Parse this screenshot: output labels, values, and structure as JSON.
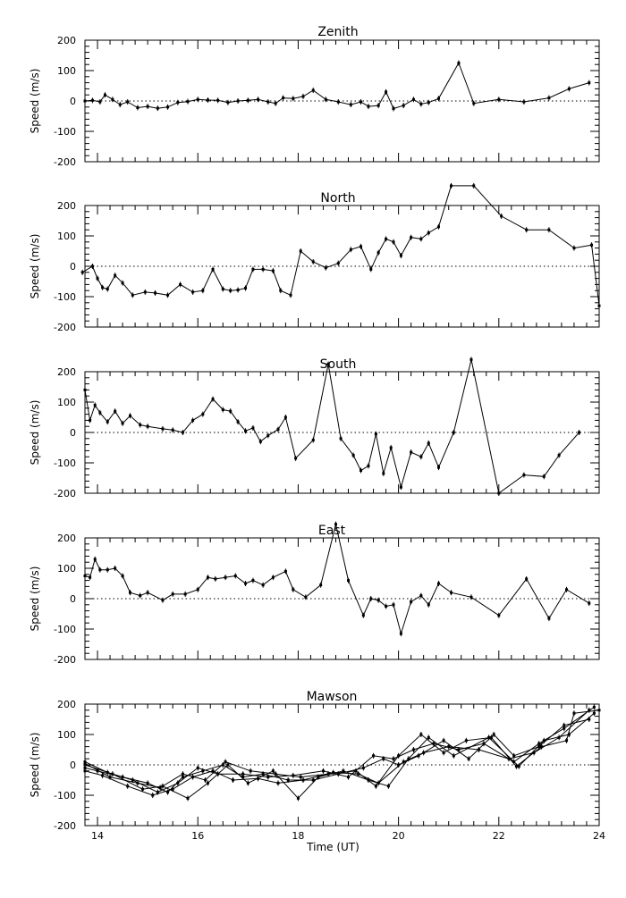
{
  "chart_data": [
    {
      "type": "line",
      "title": "Zenith",
      "ylabel": "Speed (m/s)",
      "xlabel": "",
      "xlim": [
        13.75,
        24
      ],
      "ylim": [
        -200,
        200
      ],
      "yticks": [
        200,
        100,
        0,
        -100,
        -200
      ],
      "xticks": [
        14,
        16,
        18,
        20,
        22,
        24
      ],
      "grid": false,
      "series": [
        {
          "x": [
            13.75,
            13.9,
            14.05,
            14.15,
            14.3,
            14.45,
            14.6,
            14.8,
            15.0,
            15.2,
            15.4,
            15.6,
            15.8,
            16.0,
            16.2,
            16.4,
            16.6,
            16.8,
            17.0,
            17.2,
            17.4,
            17.55,
            17.7,
            17.9,
            18.1,
            18.3,
            18.55,
            18.8,
            19.05,
            19.25,
            19.4,
            19.6,
            19.75,
            19.9,
            20.1,
            20.3,
            20.45,
            20.6,
            20.8,
            21.2,
            21.5,
            22.0,
            22.5,
            23.0,
            23.4,
            23.8
          ],
          "y": [
            0,
            2,
            -3,
            20,
            5,
            -12,
            -3,
            -22,
            -18,
            -24,
            -20,
            -5,
            -2,
            5,
            3,
            2,
            -5,
            0,
            2,
            5,
            -3,
            -8,
            10,
            8,
            15,
            35,
            5,
            -3,
            -12,
            -3,
            -18,
            -15,
            30,
            -25,
            -15,
            5,
            -10,
            -5,
            8,
            125,
            -8,
            5,
            -3,
            10,
            40,
            60
          ]
        }
      ]
    },
    {
      "type": "line",
      "title": "North",
      "ylabel": "Speed (m/s)",
      "xlabel": "",
      "xlim": [
        13.75,
        24
      ],
      "ylim": [
        -200,
        200
      ],
      "yticks": [
        200,
        100,
        0,
        -100,
        -200
      ],
      "xticks": [
        14,
        16,
        18,
        20,
        22,
        24
      ],
      "grid": false,
      "series": [
        {
          "x": [
            13.7,
            13.9,
            14.0,
            14.1,
            14.2,
            14.35,
            14.5,
            14.7,
            14.95,
            15.15,
            15.4,
            15.65,
            15.9,
            16.1,
            16.3,
            16.5,
            16.65,
            16.8,
            16.95,
            17.1,
            17.3,
            17.5,
            17.65,
            17.85,
            18.05,
            18.3,
            18.55,
            18.8,
            19.05,
            19.25,
            19.45,
            19.6,
            19.75,
            19.9,
            20.05,
            20.25,
            20.45,
            20.6,
            20.8,
            21.05,
            21.5,
            22.05,
            22.55,
            23.0,
            23.5,
            23.85,
            24.0
          ],
          "y": [
            -20,
            0,
            -40,
            -70,
            -75,
            -30,
            -55,
            -95,
            -85,
            -88,
            -95,
            -60,
            -85,
            -80,
            -10,
            -75,
            -80,
            -78,
            -72,
            -10,
            -10,
            -15,
            -80,
            -95,
            50,
            15,
            -5,
            10,
            55,
            65,
            -10,
            45,
            90,
            80,
            35,
            95,
            90,
            110,
            130,
            265,
            265,
            165,
            120,
            120,
            60,
            70,
            -130
          ]
        }
      ]
    },
    {
      "type": "line",
      "title": "South",
      "ylabel": "Speed (m/s)",
      "xlabel": "",
      "xlim": [
        13.75,
        24
      ],
      "ylim": [
        -200,
        200
      ],
      "yticks": [
        200,
        100,
        0,
        -100,
        -200
      ],
      "xticks": [
        14,
        16,
        18,
        20,
        22,
        24
      ],
      "grid": false,
      "series": [
        {
          "x": [
            13.75,
            13.85,
            13.95,
            14.05,
            14.2,
            14.35,
            14.5,
            14.65,
            14.85,
            15.0,
            15.3,
            15.5,
            15.7,
            15.9,
            16.1,
            16.3,
            16.5,
            16.65,
            16.8,
            16.95,
            17.1,
            17.25,
            17.4,
            17.6,
            17.75,
            17.95,
            18.3,
            18.6,
            18.85,
            19.1,
            19.25,
            19.4,
            19.55,
            19.7,
            19.85,
            20.05,
            20.25,
            20.45,
            20.6,
            20.8,
            21.1,
            21.45,
            22.0,
            22.5,
            22.9,
            23.2,
            23.6
          ],
          "y": [
            140,
            40,
            90,
            65,
            35,
            70,
            30,
            55,
            25,
            20,
            12,
            8,
            0,
            40,
            60,
            110,
            75,
            70,
            35,
            5,
            15,
            -30,
            -10,
            10,
            50,
            -85,
            -25,
            225,
            -20,
            -75,
            -125,
            -110,
            -5,
            -135,
            -50,
            -180,
            -65,
            -80,
            -35,
            -115,
            0,
            240,
            -200,
            -140,
            -145,
            -75,
            0
          ]
        }
      ]
    },
    {
      "type": "line",
      "title": "East",
      "ylabel": "Speed (m/s)",
      "xlabel": "",
      "xlim": [
        13.75,
        24
      ],
      "ylim": [
        -200,
        200
      ],
      "yticks": [
        200,
        100,
        0,
        -100,
        -200
      ],
      "xticks": [
        14,
        16,
        18,
        20,
        22,
        24
      ],
      "grid": false,
      "series": [
        {
          "x": [
            13.75,
            13.85,
            13.95,
            14.05,
            14.2,
            14.35,
            14.5,
            14.65,
            14.85,
            15.0,
            15.3,
            15.5,
            15.75,
            16.0,
            16.2,
            16.35,
            16.55,
            16.75,
            16.95,
            17.1,
            17.3,
            17.5,
            17.75,
            17.9,
            18.15,
            18.45,
            18.75,
            19.0,
            19.3,
            19.45,
            19.6,
            19.75,
            19.9,
            20.05,
            20.25,
            20.45,
            20.6,
            20.8,
            21.05,
            21.45,
            22.0,
            22.55,
            23.0,
            23.35,
            23.8
          ],
          "y": [
            75,
            70,
            130,
            95,
            95,
            100,
            75,
            20,
            10,
            20,
            -5,
            15,
            15,
            30,
            70,
            65,
            70,
            75,
            50,
            60,
            45,
            70,
            90,
            30,
            5,
            45,
            245,
            60,
            -55,
            0,
            -5,
            -25,
            -20,
            -115,
            -10,
            10,
            -20,
            50,
            20,
            5,
            -55,
            65,
            -65,
            30,
            -15
          ]
        }
      ]
    },
    {
      "type": "line",
      "title": "Mawson",
      "ylabel": "Speed (m/s)",
      "xlabel": "Time (UT)",
      "xlim": [
        13.75,
        24
      ],
      "ylim": [
        -200,
        200
      ],
      "yticks": [
        200,
        100,
        0,
        -100,
        -200
      ],
      "xticks": [
        14,
        16,
        18,
        20,
        22,
        24
      ],
      "xticklabels": [
        "14",
        "16",
        "18",
        "20",
        "22",
        "24"
      ],
      "grid": false,
      "series": [
        {
          "x": [
            13.75,
            14.2,
            14.7,
            15.2,
            15.6,
            16.0,
            16.4,
            16.9,
            17.4,
            17.9,
            18.5,
            19.0,
            19.5,
            19.9,
            20.3,
            20.7,
            21.2,
            21.7,
            22.3,
            22.8,
            23.3,
            23.9
          ],
          "y": [
            10,
            -25,
            -50,
            -90,
            -60,
            -10,
            -30,
            -30,
            -40,
            -35,
            -20,
            -40,
            30,
            20,
            50,
            70,
            50,
            70,
            10,
            70,
            120,
            190
          ]
        },
        {
          "x": [
            13.75,
            14.1,
            14.6,
            15.1,
            15.5,
            15.9,
            16.3,
            16.7,
            17.2,
            17.6,
            18.1,
            18.7,
            19.2,
            19.6,
            20.1,
            20.5,
            21.0,
            21.6,
            22.2,
            22.7,
            23.2,
            23.8
          ],
          "y": [
            -20,
            -35,
            -70,
            -100,
            -80,
            -40,
            -20,
            -50,
            -45,
            -60,
            -50,
            -25,
            -30,
            -60,
            10,
            40,
            60,
            50,
            20,
            40,
            90,
            180
          ]
        },
        {
          "x": [
            13.75,
            14.3,
            14.9,
            15.3,
            15.8,
            16.2,
            16.6,
            17.0,
            17.5,
            18.0,
            18.4,
            18.9,
            19.4,
            19.8,
            20.2,
            20.6,
            21.1,
            21.8,
            22.4,
            22.9,
            23.4,
            23.9
          ],
          "y": [
            0,
            -30,
            -80,
            -70,
            -110,
            -60,
            0,
            -60,
            -20,
            -110,
            -40,
            -20,
            -50,
            -70,
            20,
            90,
            30,
            90,
            -5,
            80,
            100,
            170
          ]
        },
        {
          "x": [
            13.75,
            14.0,
            14.5,
            15.0,
            15.4,
            15.7,
            16.1,
            16.5,
            16.9,
            17.3,
            17.8,
            18.3,
            18.8,
            19.3,
            19.7,
            20.0,
            20.4,
            20.9,
            21.4,
            21.9,
            22.3,
            22.8,
            23.3,
            23.8
          ],
          "y": [
            -10,
            -20,
            -40,
            -60,
            -90,
            -40,
            -20,
            0,
            -40,
            -30,
            -50,
            -50,
            -30,
            -10,
            20,
            0,
            30,
            80,
            20,
            100,
            30,
            60,
            130,
            150
          ]
        },
        {
          "x": [
            13.75,
            14.25,
            14.8,
            15.25,
            15.7,
            16.15,
            16.55,
            17.05,
            17.55,
            18.05,
            18.6,
            19.15,
            19.55,
            20.0,
            20.45,
            20.9,
            21.35,
            21.85,
            22.35,
            22.85,
            23.35,
            23.5,
            24.0
          ],
          "y": [
            5,
            -40,
            -60,
            -75,
            -30,
            -50,
            10,
            -20,
            -30,
            -40,
            -30,
            -20,
            -70,
            30,
            100,
            40,
            80,
            90,
            -5,
            60,
            80,
            170,
            180
          ]
        }
      ]
    }
  ]
}
